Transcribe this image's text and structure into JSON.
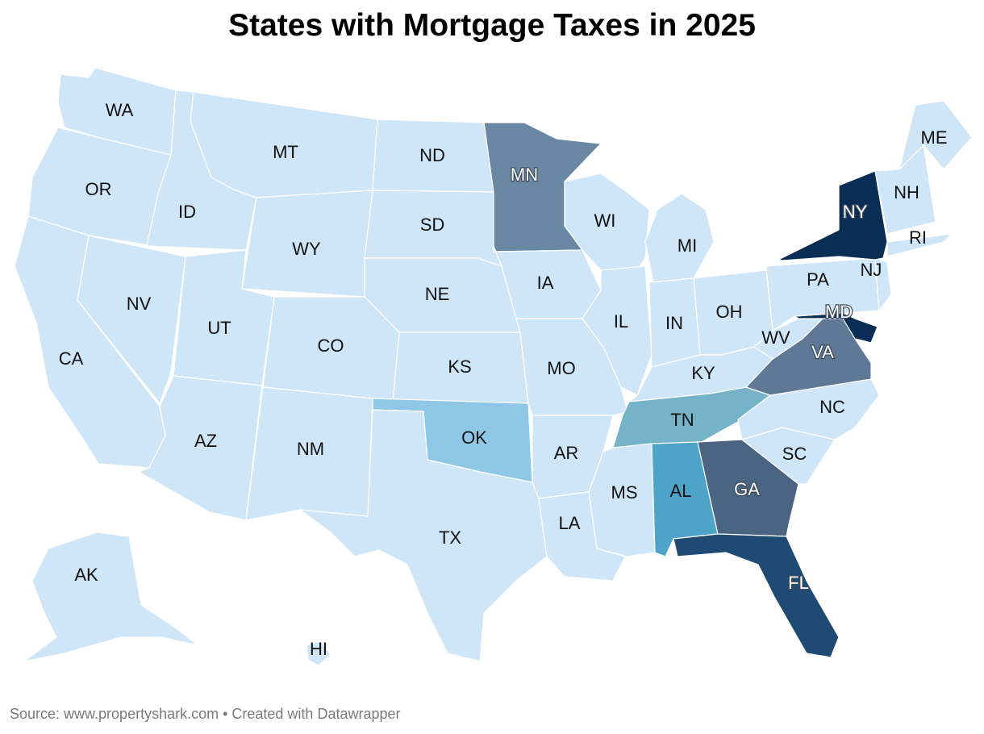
{
  "title": "States with Mortgage Taxes in 2025",
  "source": "Source: www.propertyshark.com • Created with Datawrapper",
  "colors": {
    "none": "#cfe6f8",
    "NY": "#0a2d55",
    "MD": "#0a2d55",
    "FL": "#1f4a73",
    "GA": "#4a6481",
    "VA": "#5e7895",
    "MN": "#6a87a3",
    "TN": "#74b3c8",
    "AL": "#4ea4c8",
    "OK": "#8ec8e6"
  },
  "states": [
    {
      "id": "WA",
      "label": "WA"
    },
    {
      "id": "OR",
      "label": "OR"
    },
    {
      "id": "CA",
      "label": "CA"
    },
    {
      "id": "ID",
      "label": "ID"
    },
    {
      "id": "NV",
      "label": "NV"
    },
    {
      "id": "MT",
      "label": "MT"
    },
    {
      "id": "WY",
      "label": "WY"
    },
    {
      "id": "UT",
      "label": "UT"
    },
    {
      "id": "AZ",
      "label": "AZ"
    },
    {
      "id": "CO",
      "label": "CO"
    },
    {
      "id": "NM",
      "label": "NM"
    },
    {
      "id": "ND",
      "label": "ND"
    },
    {
      "id": "SD",
      "label": "SD"
    },
    {
      "id": "NE",
      "label": "NE"
    },
    {
      "id": "KS",
      "label": "KS"
    },
    {
      "id": "OK",
      "label": "OK"
    },
    {
      "id": "TX",
      "label": "TX"
    },
    {
      "id": "MN",
      "label": "MN"
    },
    {
      "id": "IA",
      "label": "IA"
    },
    {
      "id": "MO",
      "label": "MO"
    },
    {
      "id": "AR",
      "label": "AR"
    },
    {
      "id": "LA",
      "label": "LA"
    },
    {
      "id": "WI",
      "label": "WI"
    },
    {
      "id": "IL",
      "label": "IL"
    },
    {
      "id": "MI",
      "label": "MI"
    },
    {
      "id": "IN",
      "label": "IN"
    },
    {
      "id": "OH",
      "label": "OH"
    },
    {
      "id": "KY",
      "label": "KY"
    },
    {
      "id": "TN",
      "label": "TN"
    },
    {
      "id": "MS",
      "label": "MS"
    },
    {
      "id": "AL",
      "label": "AL"
    },
    {
      "id": "GA",
      "label": "GA"
    },
    {
      "id": "FL",
      "label": "FL"
    },
    {
      "id": "SC",
      "label": "SC"
    },
    {
      "id": "NC",
      "label": "NC"
    },
    {
      "id": "VA",
      "label": "VA"
    },
    {
      "id": "WV",
      "label": "WV"
    },
    {
      "id": "MD",
      "label": "MD"
    },
    {
      "id": "PA",
      "label": "PA"
    },
    {
      "id": "NJ",
      "label": "NJ"
    },
    {
      "id": "NY",
      "label": "NY"
    },
    {
      "id": "RI",
      "label": "RI"
    },
    {
      "id": "NH",
      "label": "NH"
    },
    {
      "id": "ME",
      "label": "ME"
    },
    {
      "id": "AK",
      "label": "AK"
    },
    {
      "id": "HI",
      "label": "HI"
    }
  ]
}
